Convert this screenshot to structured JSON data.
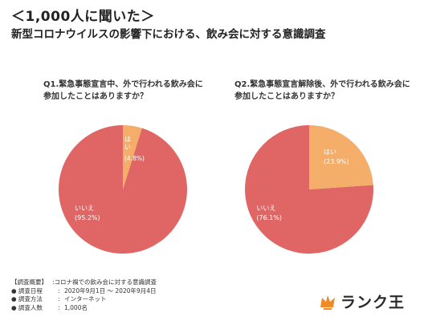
{
  "header": {
    "title": "＜1,000人に聞いた＞",
    "subtitle": "新型コロナウイルスの影響下における、飲み会に対する意識調査"
  },
  "colors": {
    "no": "#e06666",
    "yes": "#f5ad6a",
    "label": "#ffffff"
  },
  "chart_data": [
    {
      "type": "pie",
      "title": "Q1.緊急事態宣言中、外で行われる飲み会に参加したことはありますか？",
      "title_lines": [
        "Q1.緊急事態宣言中、外で行われる飲み会に",
        "参加したことはありますか？"
      ],
      "slices": [
        {
          "label": "はい",
          "value": 4.8,
          "display": "(4.8%)"
        },
        {
          "label": "いいえ",
          "value": 95.2,
          "display": "(95.2%)"
        }
      ]
    },
    {
      "type": "pie",
      "title": "Q2.緊急事態宣言解除後、外で行われる飲み会に参加したことはありますか？",
      "title_lines": [
        "Q2.緊急事態宣言解除後、外で行われる飲み会に",
        "参加したことはありますか？"
      ],
      "slices": [
        {
          "label": "はい",
          "value": 23.9,
          "display": "(23.9%)"
        },
        {
          "label": "いいえ",
          "value": 76.1,
          "display": "(76.1%)"
        }
      ]
    }
  ],
  "survey": {
    "heading": "【調査概要】",
    "heading_value": ":コロナ禍での飲み会に対する意識調査",
    "rows": [
      {
        "key": "● 調査日程",
        "value": "2020年9月1日 ～ 2020年9月4日"
      },
      {
        "key": "● 調査方法",
        "value": "インターネット"
      },
      {
        "key": "● 調査人数",
        "value": "1,000名"
      }
    ]
  },
  "brand": {
    "name": "ランク王",
    "icon": "crown-icon"
  }
}
